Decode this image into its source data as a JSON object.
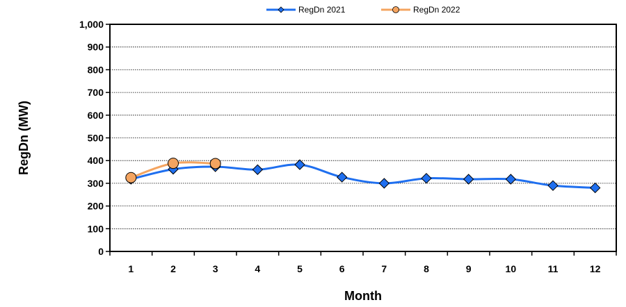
{
  "chart_data": {
    "type": "line",
    "title": "",
    "xlabel": "Month",
    "ylabel": "RegDn (MW)",
    "x": [
      1,
      2,
      3,
      4,
      5,
      6,
      7,
      8,
      9,
      10,
      11,
      12
    ],
    "x_tick_labels": [
      "1",
      "2",
      "3",
      "4",
      "5",
      "6",
      "7",
      "8",
      "9",
      "10",
      "11",
      "12"
    ],
    "ylim": [
      0,
      1000
    ],
    "y_ticks": [
      0,
      100,
      200,
      300,
      400,
      500,
      600,
      700,
      800,
      900,
      1000
    ],
    "y_tick_labels": [
      "0",
      "100",
      "200",
      "300",
      "400",
      "500",
      "600",
      "700",
      "800",
      "900",
      "1,000"
    ],
    "grid": "horizontal dotted",
    "legend_position": "top",
    "series": [
      {
        "name": "RegDn 2021",
        "color": "#1f6fef",
        "marker": "diamond",
        "values": [
          318,
          362,
          373,
          360,
          382,
          327,
          300,
          322,
          318,
          318,
          290,
          280
        ]
      },
      {
        "name": "RegDn 2022",
        "color": "#f4a460",
        "marker": "circle",
        "values": [
          325,
          388,
          387,
          null,
          null,
          null,
          null,
          null,
          null,
          null,
          null,
          null
        ]
      }
    ]
  }
}
